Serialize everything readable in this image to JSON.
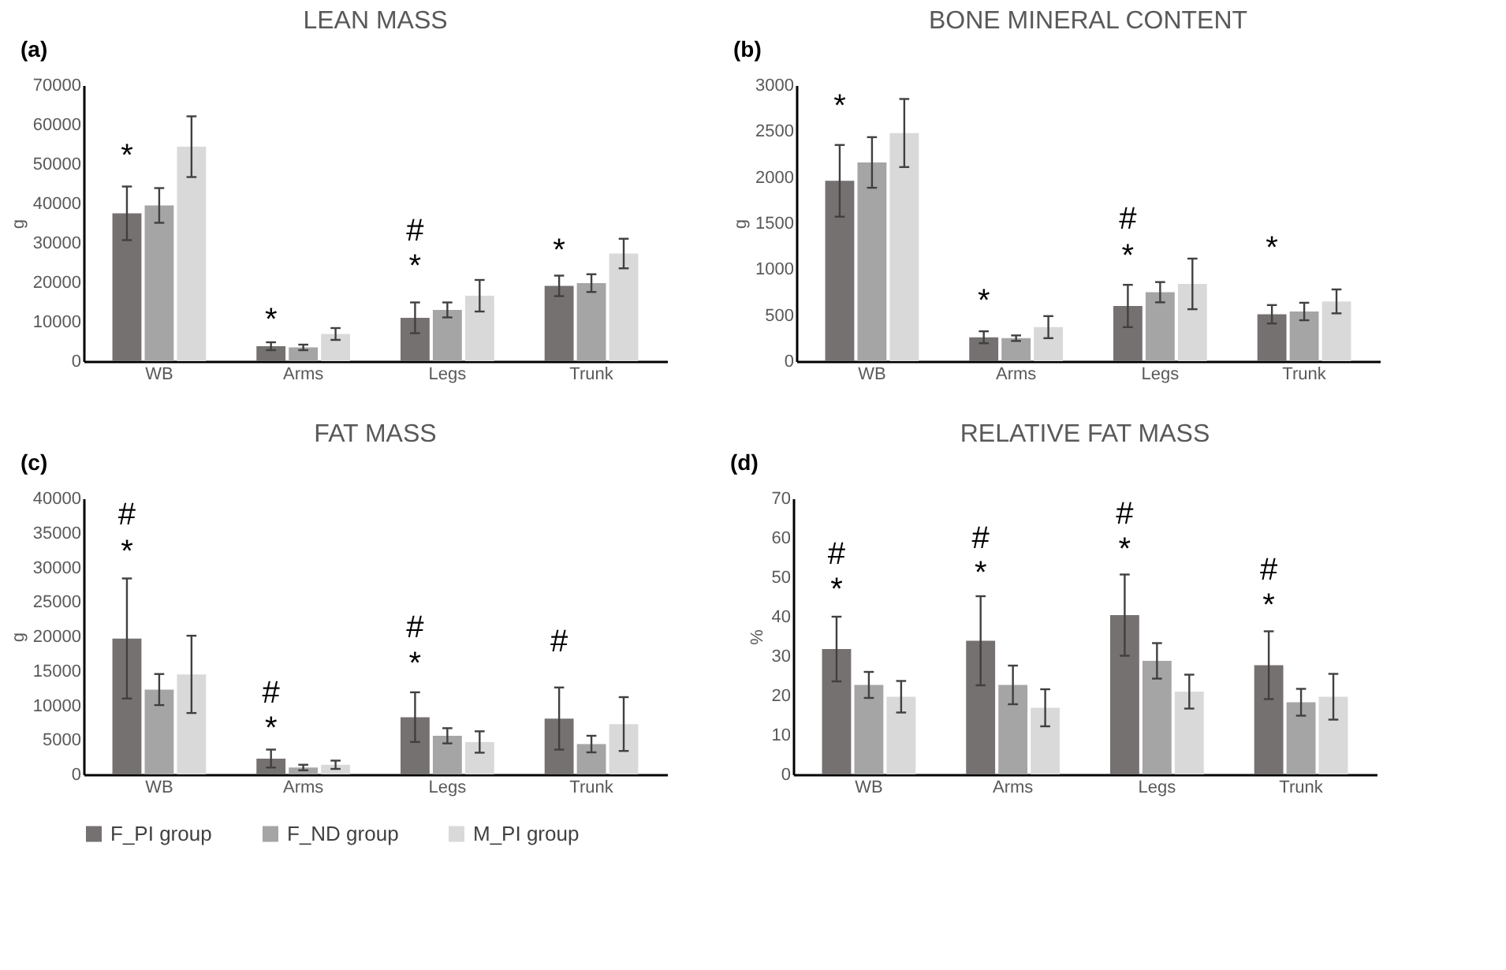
{
  "chart_data": [
    {
      "type": "bar",
      "title": "LEAN MASS",
      "ylabel": "g",
      "categories": [
        "WB",
        "Arms",
        "Legs",
        "Trunk"
      ],
      "ylim": [
        0,
        70000
      ],
      "yticks": [
        0,
        10000,
        20000,
        30000,
        40000,
        50000,
        60000,
        70000
      ],
      "grid": false,
      "legend": "bottom",
      "series": [
        {
          "name": "F_PI group",
          "color": "#767171",
          "values": [
            37500,
            3800,
            11000,
            19100
          ],
          "errors": [
            6800,
            1000,
            3900,
            2600
          ]
        },
        {
          "name": "F_ND group",
          "color": "#a5a5a5",
          "values": [
            39500,
            3500,
            13000,
            19800
          ],
          "errors": [
            4400,
            700,
            1900,
            2250
          ]
        },
        {
          "name": "M_PI group",
          "color": "#d9d9d9",
          "values": [
            54400,
            6900,
            16600,
            27300
          ],
          "errors": [
            7700,
            1500,
            4000,
            3750
          ]
        }
      ],
      "annotations": [
        "(a)",
        "*",
        "*",
        "#",
        "*",
        "*"
      ]
    },
    {
      "type": "bar",
      "title": "BONE MINERAL CONTENT",
      "ylabel": "g",
      "categories": [
        "WB",
        "Arms",
        "Legs",
        "Trunk"
      ],
      "ylim": [
        0,
        3000
      ],
      "yticks": [
        0,
        500,
        1000,
        1500,
        2000,
        2500,
        3000
      ],
      "grid": false,
      "legend": "bottom",
      "series": [
        {
          "name": "F_PI group",
          "color": "#767171",
          "values": [
            1960,
            260,
            600,
            510
          ],
          "errors": [
            390,
            65,
            230,
            100
          ]
        },
        {
          "name": "F_ND group",
          "color": "#a5a5a5",
          "values": [
            2160,
            250,
            750,
            540
          ],
          "errors": [
            275,
            30,
            110,
            95
          ]
        },
        {
          "name": "M_PI group",
          "color": "#d9d9d9",
          "values": [
            2480,
            370,
            840,
            650
          ],
          "errors": [
            370,
            120,
            275,
            130
          ]
        }
      ],
      "annotations": [
        "(b)",
        "*",
        "*",
        "#",
        "*",
        "*"
      ]
    },
    {
      "type": "bar",
      "title": "FAT MASS",
      "ylabel": "g",
      "categories": [
        "WB",
        "Arms",
        "Legs",
        "Trunk"
      ],
      "ylim": [
        0,
        40000
      ],
      "yticks": [
        0,
        5000,
        10000,
        15000,
        20000,
        25000,
        30000,
        35000,
        40000
      ],
      "grid": false,
      "legend": "bottom",
      "series": [
        {
          "name": "F_PI group",
          "color": "#767171",
          "values": [
            19700,
            2300,
            8300,
            8100
          ],
          "errors": [
            8700,
            1300,
            3600,
            4500
          ]
        },
        {
          "name": "F_ND group",
          "color": "#a5a5a5",
          "values": [
            12300,
            1000,
            5600,
            4400
          ],
          "errors": [
            2250,
            400,
            1100,
            1200
          ]
        },
        {
          "name": "M_PI group",
          "color": "#d9d9d9",
          "values": [
            14500,
            1400,
            4700,
            7300
          ],
          "errors": [
            5600,
            600,
            1550,
            3900
          ]
        }
      ],
      "annotations": [
        "(c)",
        "#",
        "*",
        "#",
        "*",
        "#",
        "*",
        "#"
      ]
    },
    {
      "type": "bar",
      "title": "RELATIVE FAT MASS",
      "ylabel": "%",
      "categories": [
        "WB",
        "Arms",
        "Legs",
        "Trunk"
      ],
      "ylim": [
        0,
        70
      ],
      "yticks": [
        0,
        10,
        20,
        30,
        40,
        50,
        60,
        70
      ],
      "grid": false,
      "legend": "bottom",
      "series": [
        {
          "name": "F_PI group",
          "color": "#767171",
          "values": [
            31.8,
            33.9,
            40.4,
            27.7
          ],
          "errors": [
            8.2,
            11.3,
            10.3,
            8.6
          ]
        },
        {
          "name": "F_ND group",
          "color": "#a5a5a5",
          "values": [
            22.7,
            22.7,
            28.8,
            18.3
          ],
          "errors": [
            3.3,
            4.9,
            4.5,
            3.4
          ]
        },
        {
          "name": "M_PI group",
          "color": "#d9d9d9",
          "values": [
            19.7,
            16.9,
            21.0,
            19.7
          ],
          "errors": [
            4.0,
            4.7,
            4.3,
            5.8
          ]
        }
      ],
      "annotations": [
        "(d)",
        "#",
        "*",
        "#",
        "*",
        "#",
        "*",
        "#",
        "*"
      ]
    }
  ]
}
